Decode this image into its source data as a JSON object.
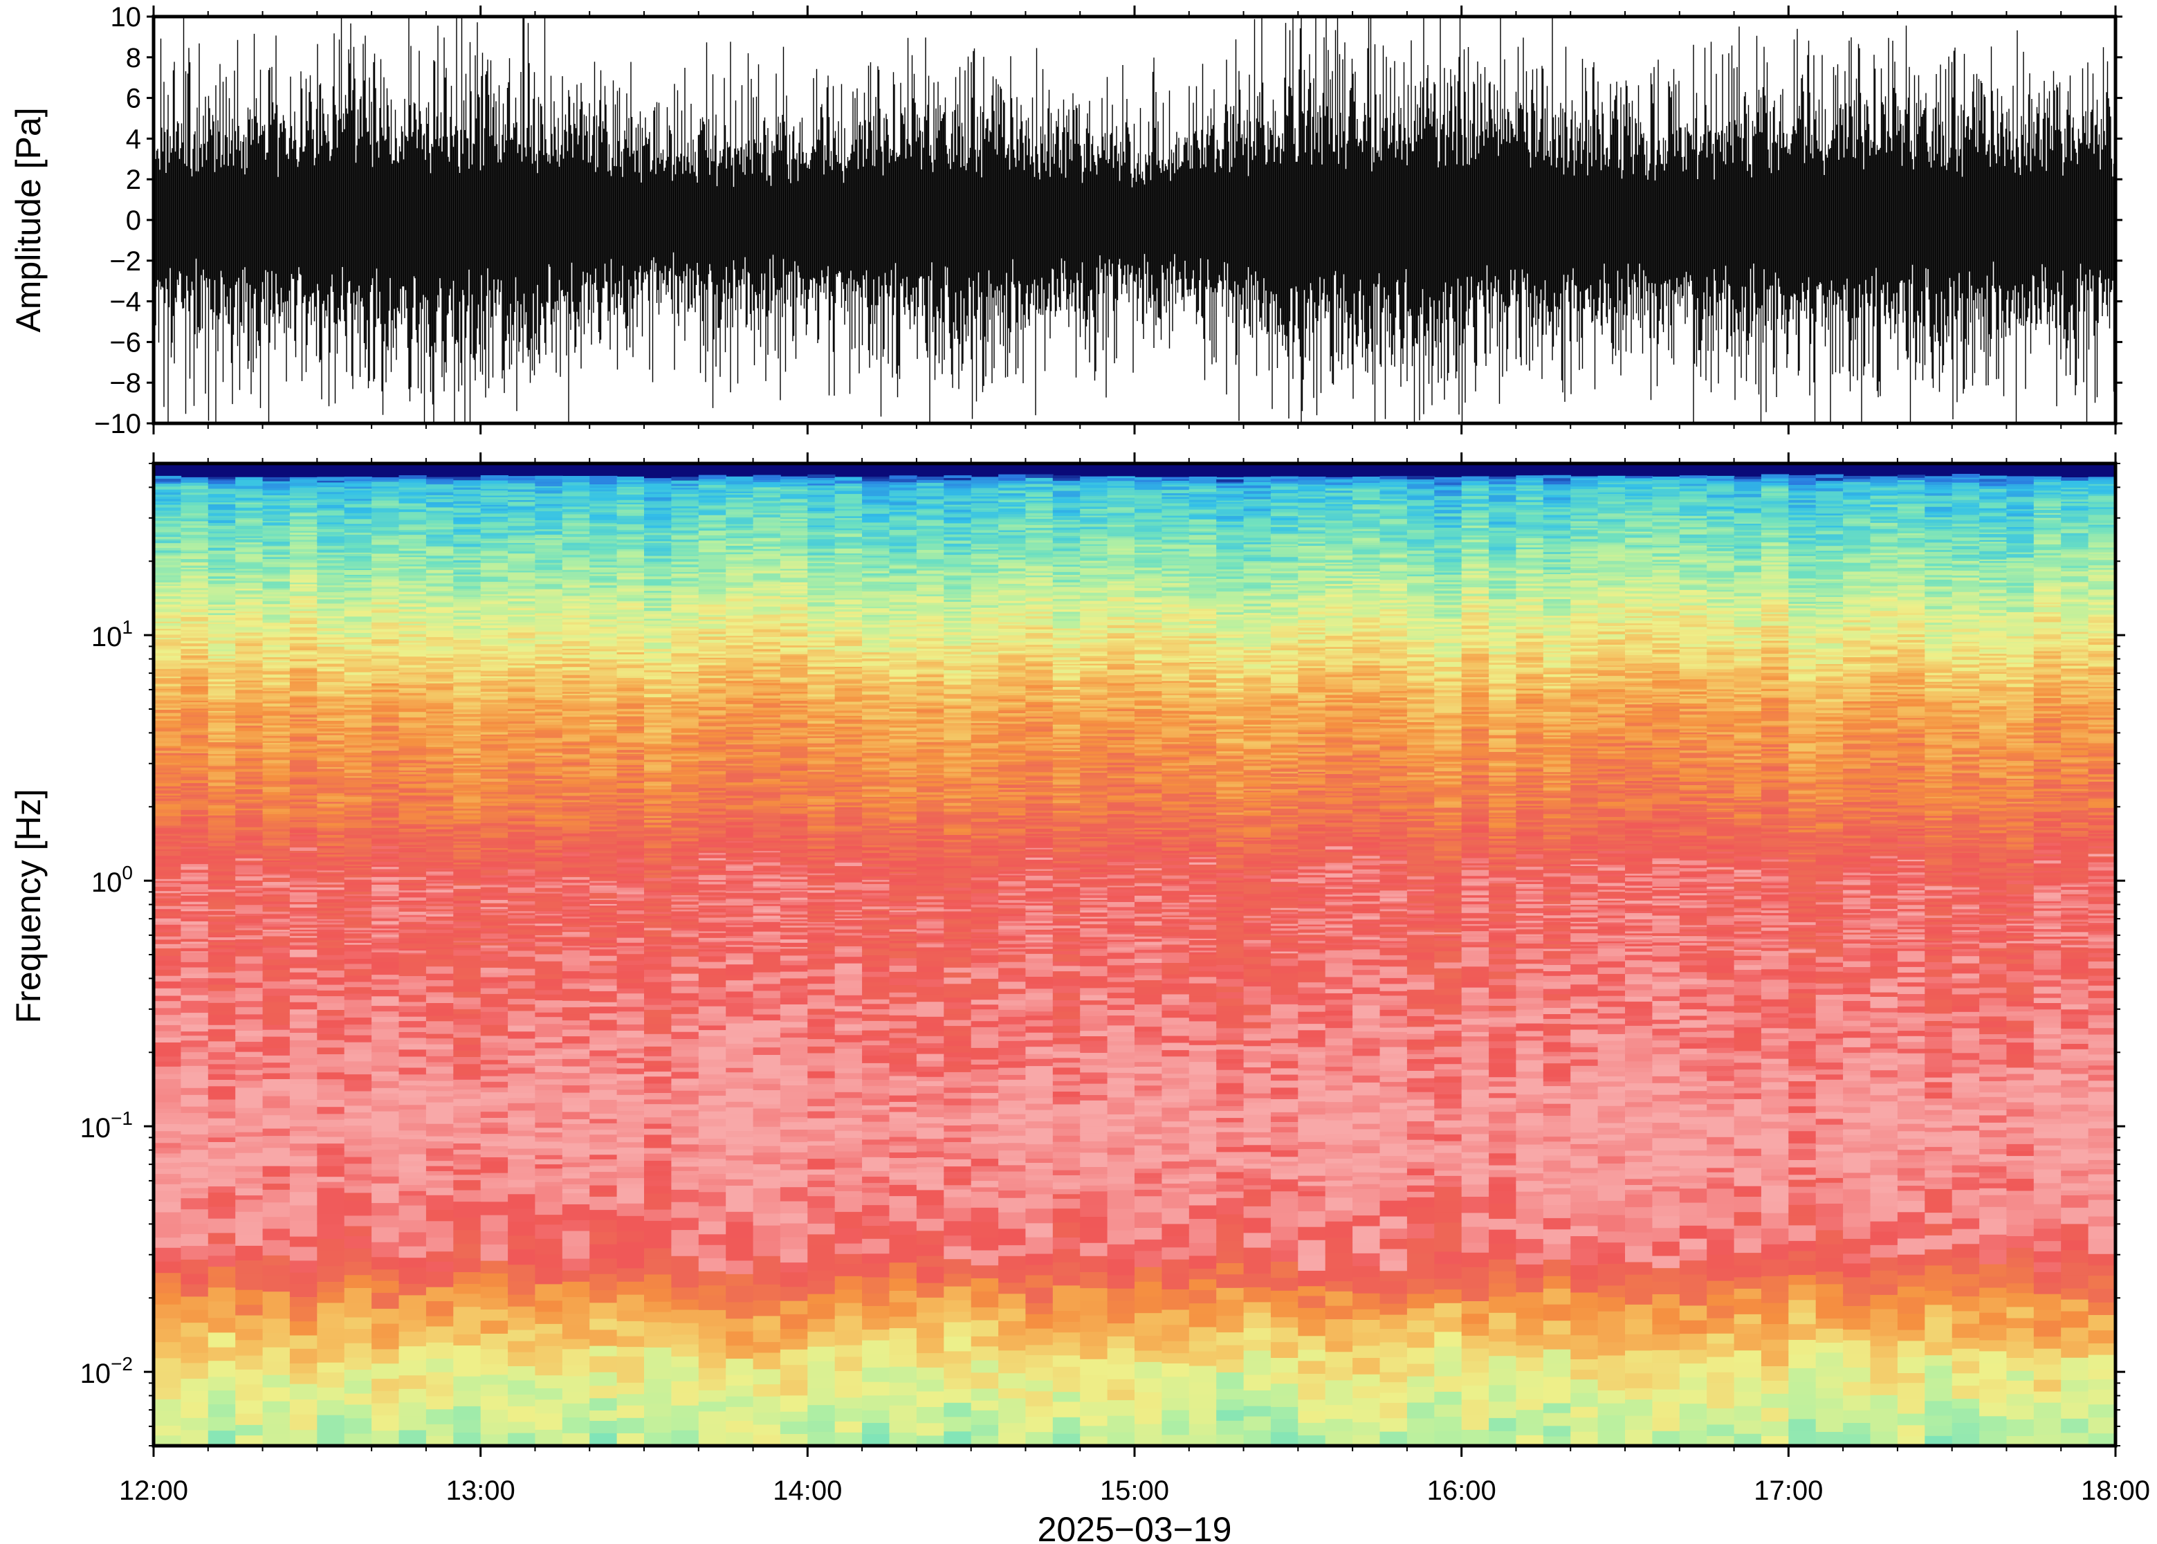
{
  "figure": {
    "date_label": "2025−03−19"
  },
  "chart_data": [
    {
      "type": "line",
      "panel": "waveform",
      "ylabel": "Amplitude [Pa]",
      "ylim": [
        -10,
        10
      ],
      "yticks": [
        -10,
        -8,
        -6,
        -4,
        -2,
        0,
        2,
        4,
        6,
        8,
        10
      ],
      "ytick_labels": [
        "−10",
        "−8",
        "−6",
        "−4",
        "−2",
        "0",
        "2",
        "4",
        "6",
        "8",
        "10"
      ],
      "xlim": [
        "12:00",
        "18:00"
      ],
      "line_color": "#000000",
      "envelope": {
        "times": [
          "12:00",
          "12:30",
          "13:00",
          "13:30",
          "14:00",
          "14:30",
          "15:00",
          "15:30",
          "16:00",
          "16:30",
          "17:00",
          "17:30",
          "18:00"
        ],
        "typical_amplitude": [
          4,
          4.5,
          5,
          3.5,
          3.5,
          4.5,
          3,
          5,
          5,
          4,
          4.5,
          4.5,
          4
        ],
        "peak_amplitude": [
          10,
          10,
          10,
          9,
          9,
          9,
          8,
          10,
          9,
          9,
          9,
          9,
          9
        ]
      }
    },
    {
      "type": "heatmap",
      "panel": "spectrogram",
      "ylabel": "Frequency [Hz]",
      "yscale": "log",
      "ylim": [
        0.005,
        50
      ],
      "ytick_labels": [
        {
          "value": 0.01,
          "base": "10",
          "exp": "−2"
        },
        {
          "value": 0.1,
          "base": "10",
          "exp": "−1"
        },
        {
          "value": 1,
          "base": "10",
          "exp": "0"
        },
        {
          "value": 10,
          "base": "10",
          "exp": "1"
        }
      ],
      "xlim": [
        "12:00",
        "18:00"
      ],
      "xticks": [
        "12:00",
        "13:00",
        "14:00",
        "15:00",
        "16:00",
        "17:00",
        "18:00"
      ],
      "xlabel": "2025−03−19",
      "colormap": [
        "#0a0a78",
        "#2a7be0",
        "#33c0e8",
        "#6ee0c0",
        "#b8f0a0",
        "#eef08a",
        "#f5c060",
        "#f59040",
        "#ee6a55",
        "#f05858",
        "#f8a8a8"
      ],
      "frequency_profile": {
        "frequency_hz": [
          0.005,
          0.01,
          0.02,
          0.03,
          0.05,
          0.1,
          0.2,
          0.5,
          1,
          2,
          5,
          10,
          20,
          40,
          48
        ],
        "color_index": [
          4,
          5,
          7,
          9,
          9.5,
          10,
          9.5,
          9,
          9,
          7.5,
          6.5,
          5,
          3.5,
          2.2,
          0
        ]
      }
    }
  ]
}
